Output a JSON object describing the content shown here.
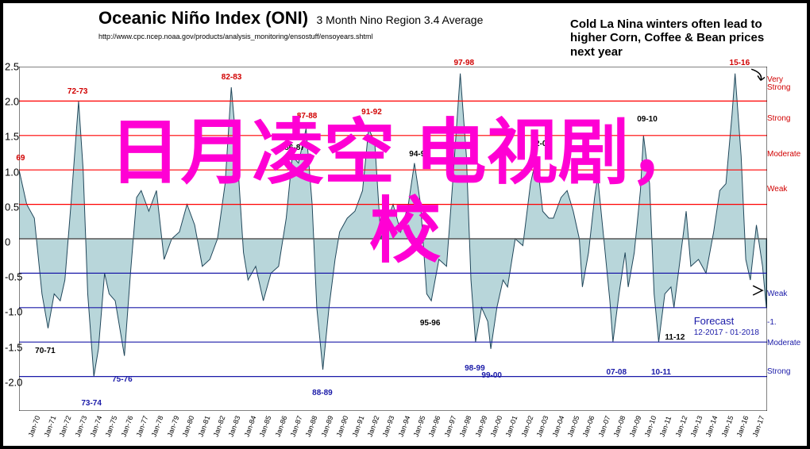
{
  "title": "Oceanic Niño Index (ONI)",
  "subtitle": "3 Month Nino Region 3.4 Average",
  "source_url": "http://www.cpc.ncep.noaa.gov/products/analysis_monitoring/ensostuff/ensoyears.shtml",
  "top_annotation": "Cold La Nina winters often lead to higher Corn, Coffee & Bean prices next year",
  "forecast_label": "Forecast",
  "forecast_dates": "12-2017 - 01-2018",
  "overlay_line1": "日月凌空 电视剧，",
  "overlay_line2": "校",
  "colors": {
    "area_fill": "#b8d6da",
    "area_stroke": "#20465a",
    "axis": "#000000",
    "red_line": "#ff0000",
    "blue_line": "#1a1aa8",
    "zero_line": "#555555",
    "peak_red": "#d10000",
    "peak_black": "#000000",
    "peak_blue": "#1a1aa8",
    "right_red": "#d10000",
    "right_blue": "#1a1aa8",
    "overlay": "#ff00d4"
  },
  "y_axis": {
    "min": -2.5,
    "max": 2.5,
    "ticks": [
      -2.0,
      -1.5,
      -1.0,
      -0.5,
      0,
      0.5,
      1.0,
      1.5,
      2.0,
      2.5
    ]
  },
  "x_axis": {
    "start_year": 1969,
    "end_year": 2017,
    "tick_years": [
      1970,
      1971,
      1972,
      1973,
      1974,
      1975,
      1976,
      1977,
      1978,
      1979,
      1980,
      1981,
      1982,
      1983,
      1984,
      1985,
      1986,
      1987,
      1988,
      1989,
      1990,
      1991,
      1992,
      1993,
      1994,
      1995,
      1996,
      1997,
      1998,
      1999,
      2000,
      2001,
      2002,
      2003,
      2004,
      2005,
      2006,
      2007,
      2008,
      2009,
      2010,
      2011,
      2012,
      2013,
      2014,
      2015,
      2016,
      2017
    ],
    "tick_prefix": "Jan-",
    "label_fontsize": 9
  },
  "threshold_lines": {
    "el_nino": [
      0.5,
      1.0,
      1.5,
      2.0
    ],
    "la_nina": [
      -0.5,
      -1.0,
      -1.5,
      -2.0
    ]
  },
  "right_labels": [
    {
      "y": 2.25,
      "text": "Very Strong",
      "color": "#d10000"
    },
    {
      "y": 1.75,
      "text": "Strong",
      "color": "#d10000"
    },
    {
      "y": 1.25,
      "text": "Moderate",
      "color": "#d10000"
    },
    {
      "y": 0.75,
      "text": "Weak",
      "color": "#d10000"
    },
    {
      "y": -0.75,
      "text": "Weak",
      "color": "#1a1aa8"
    },
    {
      "y": -1.15,
      "text": "-1.",
      "color": "#1a1aa8"
    },
    {
      "y": -1.45,
      "text": "Moderate",
      "color": "#1a1aa8"
    },
    {
      "y": -1.85,
      "text": "Strong",
      "color": "#1a1aa8"
    }
  ],
  "peak_labels": [
    {
      "year": 1969.1,
      "y": 1.1,
      "text": "69",
      "color": "#d10000"
    },
    {
      "year": 1972.8,
      "y": 2.05,
      "text": "72-73",
      "color": "#d10000"
    },
    {
      "year": 1982.8,
      "y": 2.25,
      "text": "82-83",
      "color": "#d10000"
    },
    {
      "year": 1987.7,
      "y": 1.7,
      "text": "87-88",
      "color": "#d10000"
    },
    {
      "year": 1991.9,
      "y": 1.75,
      "text": "91-92",
      "color": "#d10000"
    },
    {
      "year": 1997.9,
      "y": 2.45,
      "text": "97-98",
      "color": "#d10000"
    },
    {
      "year": 2015.8,
      "y": 2.45,
      "text": "15-16",
      "color": "#d10000"
    },
    {
      "year": 1986.9,
      "y": 1.25,
      "text": "86-87",
      "color": "#000000"
    },
    {
      "year": 1995.0,
      "y": 1.15,
      "text": "94-95",
      "color": "#000000"
    },
    {
      "year": 2002.9,
      "y": 1.3,
      "text": "02-03",
      "color": "#000000"
    },
    {
      "year": 2009.8,
      "y": 1.65,
      "text": "09-10",
      "color": "#000000"
    },
    {
      "year": 1970.7,
      "y": -1.45,
      "text": "70-71",
      "color": "#000000"
    },
    {
      "year": 1995.7,
      "y": -1.05,
      "text": "95-96",
      "color": "#000000"
    },
    {
      "year": 2011.6,
      "y": -1.25,
      "text": "11-12",
      "color": "#000000"
    },
    {
      "year": 1973.7,
      "y": -2.2,
      "text": "73-74",
      "color": "#1a1aa8"
    },
    {
      "year": 1975.7,
      "y": -1.85,
      "text": "75-76",
      "color": "#1a1aa8"
    },
    {
      "year": 1988.7,
      "y": -2.05,
      "text": "88-89",
      "color": "#1a1aa8"
    },
    {
      "year": 1998.6,
      "y": -1.7,
      "text": "98-99",
      "color": "#1a1aa8"
    },
    {
      "year": 1999.7,
      "y": -1.8,
      "text": "99-00",
      "color": "#1a1aa8"
    },
    {
      "year": 2007.8,
      "y": -1.75,
      "text": "07-08",
      "color": "#1a1aa8"
    },
    {
      "year": 2010.7,
      "y": -1.75,
      "text": "10-11",
      "color": "#1a1aa8"
    }
  ],
  "series": [
    [
      1969.0,
      1.0
    ],
    [
      1969.5,
      0.5
    ],
    [
      1970.0,
      0.3
    ],
    [
      1970.5,
      -0.8
    ],
    [
      1970.9,
      -1.3
    ],
    [
      1971.3,
      -0.8
    ],
    [
      1971.7,
      -0.9
    ],
    [
      1972.0,
      -0.6
    ],
    [
      1972.4,
      0.5
    ],
    [
      1972.9,
      2.0
    ],
    [
      1973.2,
      1.0
    ],
    [
      1973.5,
      -0.8
    ],
    [
      1973.9,
      -2.0
    ],
    [
      1974.2,
      -1.6
    ],
    [
      1974.6,
      -0.5
    ],
    [
      1974.9,
      -0.8
    ],
    [
      1975.3,
      -0.9
    ],
    [
      1975.9,
      -1.7
    ],
    [
      1976.3,
      -0.5
    ],
    [
      1976.7,
      0.6
    ],
    [
      1977.0,
      0.7
    ],
    [
      1977.5,
      0.4
    ],
    [
      1978.0,
      0.7
    ],
    [
      1978.5,
      -0.3
    ],
    [
      1979.0,
      0.0
    ],
    [
      1979.5,
      0.1
    ],
    [
      1980.0,
      0.5
    ],
    [
      1980.5,
      0.2
    ],
    [
      1981.0,
      -0.4
    ],
    [
      1981.5,
      -0.3
    ],
    [
      1982.0,
      0.0
    ],
    [
      1982.5,
      0.8
    ],
    [
      1982.9,
      2.2
    ],
    [
      1983.3,
      1.2
    ],
    [
      1983.7,
      -0.2
    ],
    [
      1984.0,
      -0.6
    ],
    [
      1984.5,
      -0.4
    ],
    [
      1985.0,
      -0.9
    ],
    [
      1985.5,
      -0.5
    ],
    [
      1986.0,
      -0.4
    ],
    [
      1986.5,
      0.3
    ],
    [
      1986.9,
      1.2
    ],
    [
      1987.3,
      1.1
    ],
    [
      1987.8,
      1.6
    ],
    [
      1988.2,
      0.5
    ],
    [
      1988.5,
      -1.0
    ],
    [
      1988.9,
      -1.9
    ],
    [
      1989.3,
      -1.0
    ],
    [
      1989.7,
      -0.3
    ],
    [
      1990.0,
      0.1
    ],
    [
      1990.5,
      0.3
    ],
    [
      1991.0,
      0.4
    ],
    [
      1991.5,
      0.7
    ],
    [
      1991.9,
      1.6
    ],
    [
      1992.3,
      1.4
    ],
    [
      1992.7,
      0.0
    ],
    [
      1993.0,
      0.2
    ],
    [
      1993.5,
      0.5
    ],
    [
      1994.0,
      0.1
    ],
    [
      1994.5,
      0.5
    ],
    [
      1994.9,
      1.1
    ],
    [
      1995.3,
      0.5
    ],
    [
      1995.7,
      -0.8
    ],
    [
      1996.0,
      -0.9
    ],
    [
      1996.5,
      -0.3
    ],
    [
      1997.0,
      -0.4
    ],
    [
      1997.4,
      0.8
    ],
    [
      1997.9,
      2.4
    ],
    [
      1998.3,
      1.2
    ],
    [
      1998.6,
      -0.6
    ],
    [
      1998.9,
      -1.5
    ],
    [
      1999.3,
      -1.0
    ],
    [
      1999.7,
      -1.2
    ],
    [
      1999.9,
      -1.6
    ],
    [
      2000.3,
      -1.0
    ],
    [
      2000.7,
      -0.6
    ],
    [
      2001.0,
      -0.7
    ],
    [
      2001.5,
      0.0
    ],
    [
      2002.0,
      -0.1
    ],
    [
      2002.5,
      0.8
    ],
    [
      2002.9,
      1.2
    ],
    [
      2003.3,
      0.4
    ],
    [
      2003.7,
      0.3
    ],
    [
      2004.0,
      0.3
    ],
    [
      2004.5,
      0.6
    ],
    [
      2004.9,
      0.7
    ],
    [
      2005.3,
      0.4
    ],
    [
      2005.7,
      0.0
    ],
    [
      2005.9,
      -0.7
    ],
    [
      2006.3,
      -0.2
    ],
    [
      2006.7,
      0.6
    ],
    [
      2006.9,
      0.9
    ],
    [
      2007.3,
      0.0
    ],
    [
      2007.7,
      -0.9
    ],
    [
      2007.9,
      -1.5
    ],
    [
      2008.3,
      -0.8
    ],
    [
      2008.7,
      -0.2
    ],
    [
      2008.9,
      -0.7
    ],
    [
      2009.3,
      -0.2
    ],
    [
      2009.7,
      0.7
    ],
    [
      2009.9,
      1.5
    ],
    [
      2010.3,
      0.8
    ],
    [
      2010.6,
      -0.8
    ],
    [
      2010.9,
      -1.5
    ],
    [
      2011.3,
      -0.8
    ],
    [
      2011.7,
      -0.7
    ],
    [
      2011.9,
      -1.0
    ],
    [
      2012.3,
      -0.3
    ],
    [
      2012.7,
      0.4
    ],
    [
      2013.0,
      -0.4
    ],
    [
      2013.5,
      -0.3
    ],
    [
      2014.0,
      -0.5
    ],
    [
      2014.5,
      0.1
    ],
    [
      2014.9,
      0.7
    ],
    [
      2015.3,
      0.8
    ],
    [
      2015.7,
      1.8
    ],
    [
      2015.9,
      2.4
    ],
    [
      2016.3,
      1.2
    ],
    [
      2016.6,
      -0.3
    ],
    [
      2016.9,
      -0.6
    ],
    [
      2017.3,
      0.2
    ],
    [
      2017.7,
      -0.4
    ],
    [
      2017.95,
      -1.0
    ]
  ]
}
